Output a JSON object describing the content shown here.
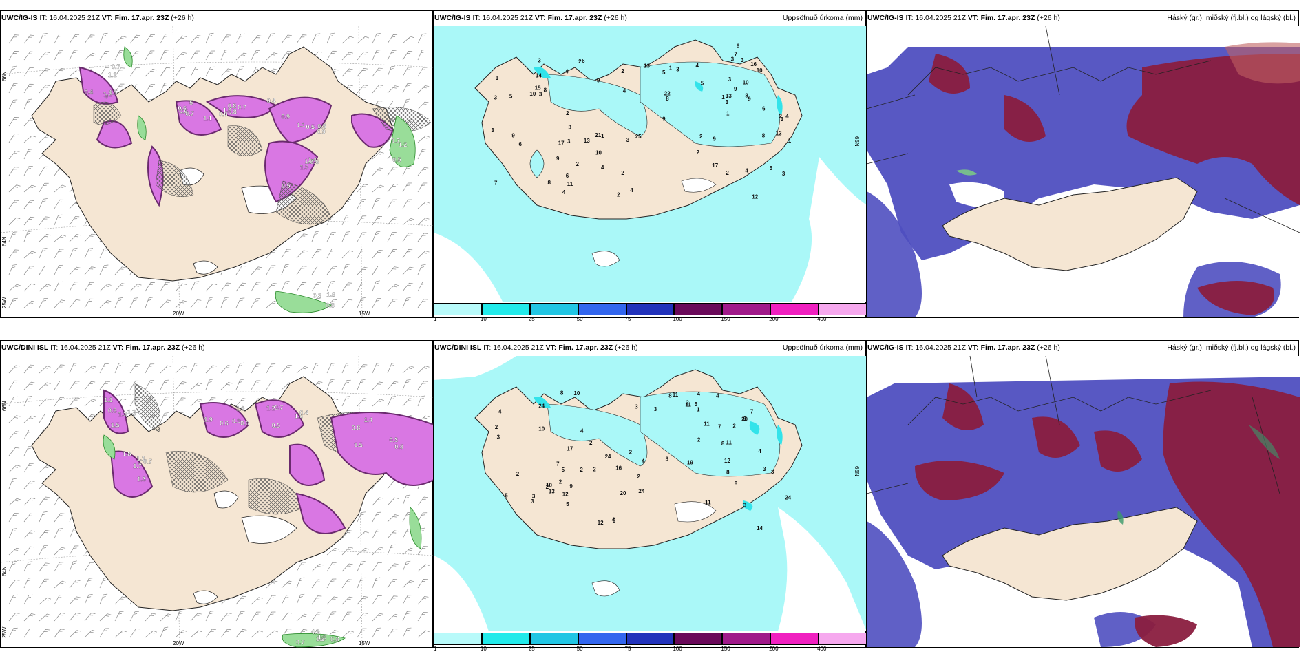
{
  "colors": {
    "land": "#f5e6d3",
    "precip_light": "#aaf8f8",
    "precip_mid": "#33e3ea",
    "precip_dark": "#22c7dd",
    "snow_pink": "#e07ae8",
    "snow_dark": "#7a2f7e",
    "cloud_blue": "#4f4fc0",
    "cloud_red": "#8a1e3f",
    "green": "#99dd99"
  },
  "rows": [
    {
      "wind_panel": {
        "model": "UWC/IG-IS",
        "it_label": "IT:",
        "it_value": "16.04.2025 21Z",
        "vt_label": "VT: Fim. 17.apr. 23Z",
        "lead": "(+26 h)",
        "lon_labels": [
          "20W",
          "15W"
        ],
        "lat_labels": [
          "66N",
          "64N",
          "25W"
        ]
      },
      "precip_panel": {
        "model": "UWC/IG-IS",
        "it_label": "IT:",
        "it_value": "16.04.2025 21Z",
        "vt_label": "VT: Fim. 17.apr. 23Z",
        "lead": "(+26 h)",
        "title": "Uppsöfnuð úrkoma (mm)",
        "lat_label": "65N"
      },
      "cloud_panel": {
        "model": "UWC/IG-IS",
        "it_label": "IT:",
        "it_value": "16.04.2025 21Z",
        "vt_label": "VT: Fim. 17.apr. 23Z",
        "lead": "(+26 h)",
        "title": "Háský (gr.), miðský (fj.bl.) og lágský (bl.)"
      }
    },
    {
      "wind_panel": {
        "model": "UWC/DINI ISL",
        "it_label": "IT:",
        "it_value": "16.04.2025 21Z",
        "vt_label": "VT: Fim. 17.apr. 23Z",
        "lead": "(+26 h)",
        "lon_labels": [
          "20W",
          "15W"
        ],
        "lat_labels": [
          "66N",
          "64N",
          "25W"
        ]
      },
      "precip_panel": {
        "model": "UWC/DINI ISL",
        "it_label": "IT:",
        "it_value": "16.04.2025 21Z",
        "vt_label": "VT: Fim. 17.apr. 23Z",
        "lead": "(+26 h)",
        "title": "Uppsöfnuð úrkoma (mm)",
        "lat_label": "65N"
      },
      "cloud_panel": {
        "model": "UWC/IG-IS",
        "it_label": "IT:",
        "it_value": "16.04.2025 21Z",
        "vt_label": "VT: Fim. 17.apr. 23Z",
        "lead": "(+26 h)",
        "title": "Háský (gr.), miðský (fj.bl.) og lágský (bl.)"
      }
    }
  ],
  "colorbar": {
    "labels": [
      "1",
      "10",
      "25",
      "50",
      "75",
      "100",
      "150",
      "200",
      "400"
    ],
    "colors": [
      "#b8fafa",
      "#22eaea",
      "#21c6e4",
      "#3366ee",
      "#2233bb",
      "#6a0a5a",
      "#a01a8a",
      "#f020c0",
      "#f6a8ee"
    ]
  },
  "precip_values_top": [
    "2",
    "2",
    "3",
    "1",
    "2",
    "2",
    "6",
    "6",
    "3",
    "3",
    "9",
    "17",
    "16",
    "2",
    "8",
    "8",
    "9",
    "13",
    "13",
    "13",
    "13",
    "15",
    "22",
    "17",
    "10",
    "7",
    "7",
    "9",
    "12",
    "25",
    "21",
    "11",
    "5",
    "9",
    "9",
    "8",
    "3",
    "3",
    "3",
    "2",
    "2",
    "3",
    "5",
    "4",
    "4",
    "2",
    "3",
    "3",
    "1",
    "4",
    "8",
    "5",
    "8",
    "6",
    "6",
    "9",
    "10",
    "10",
    "5",
    "4",
    "4",
    "4",
    "4",
    "3",
    "3",
    "6",
    "1",
    "1",
    "1",
    "1",
    "3",
    "3",
    "3",
    "2",
    "2",
    "4",
    "14",
    "10",
    "9"
  ],
  "precip_values_bottom": [
    "4",
    "3",
    "4",
    "2",
    "24",
    "17",
    "3",
    "3",
    "3",
    "2",
    "2",
    "12",
    "11",
    "14",
    "16",
    "19",
    "13",
    "20",
    "24",
    "20",
    "10",
    "7",
    "8",
    "8",
    "12",
    "24",
    "24",
    "7",
    "11",
    "9",
    "8",
    "10",
    "7",
    "3",
    "4",
    "3",
    "4",
    "3",
    "8",
    "5",
    "5",
    "5",
    "11",
    "11",
    "2",
    "2",
    "3",
    "1",
    "2",
    "2",
    "3",
    "2",
    "5",
    "3",
    "2",
    "2",
    "2",
    "4",
    "4",
    "5",
    "12",
    "10",
    "11",
    "8",
    "2",
    "4"
  ],
  "snow_values_top": [
    "3",
    "5",
    "1.0",
    "0.9",
    "1.4",
    "1.2",
    "0.8",
    "0.8",
    "1.1",
    "0.5",
    "0.4",
    "0.6",
    "0.7",
    "0.5",
    "1.2",
    "0.7",
    "0.6",
    "0.4",
    "0.5",
    "0.6",
    "1.5",
    "1.1",
    "0.8",
    "0.9",
    "1.5",
    "1.1",
    "0.7"
  ],
  "green_values_top": [
    "0.8",
    "1.7",
    "1.8",
    "1.2",
    "0.3",
    "0.5"
  ],
  "snow_values_bottom": [
    "1.2",
    "1.3",
    "1.0",
    "0.7",
    "0.8",
    "1.5",
    "1.7",
    "0.6",
    "0.4",
    "0.3",
    "1.1",
    "1.8",
    "1.9",
    "1.6",
    "1.4",
    "0.8",
    "0.7",
    "0.9",
    "1.2",
    "1.5",
    "1.3",
    "1.1",
    "0.6",
    "0.5",
    "0.8"
  ],
  "green_values_bottom": [
    "0.7",
    "0.8",
    "1.6",
    "1.2",
    "4.9"
  ]
}
